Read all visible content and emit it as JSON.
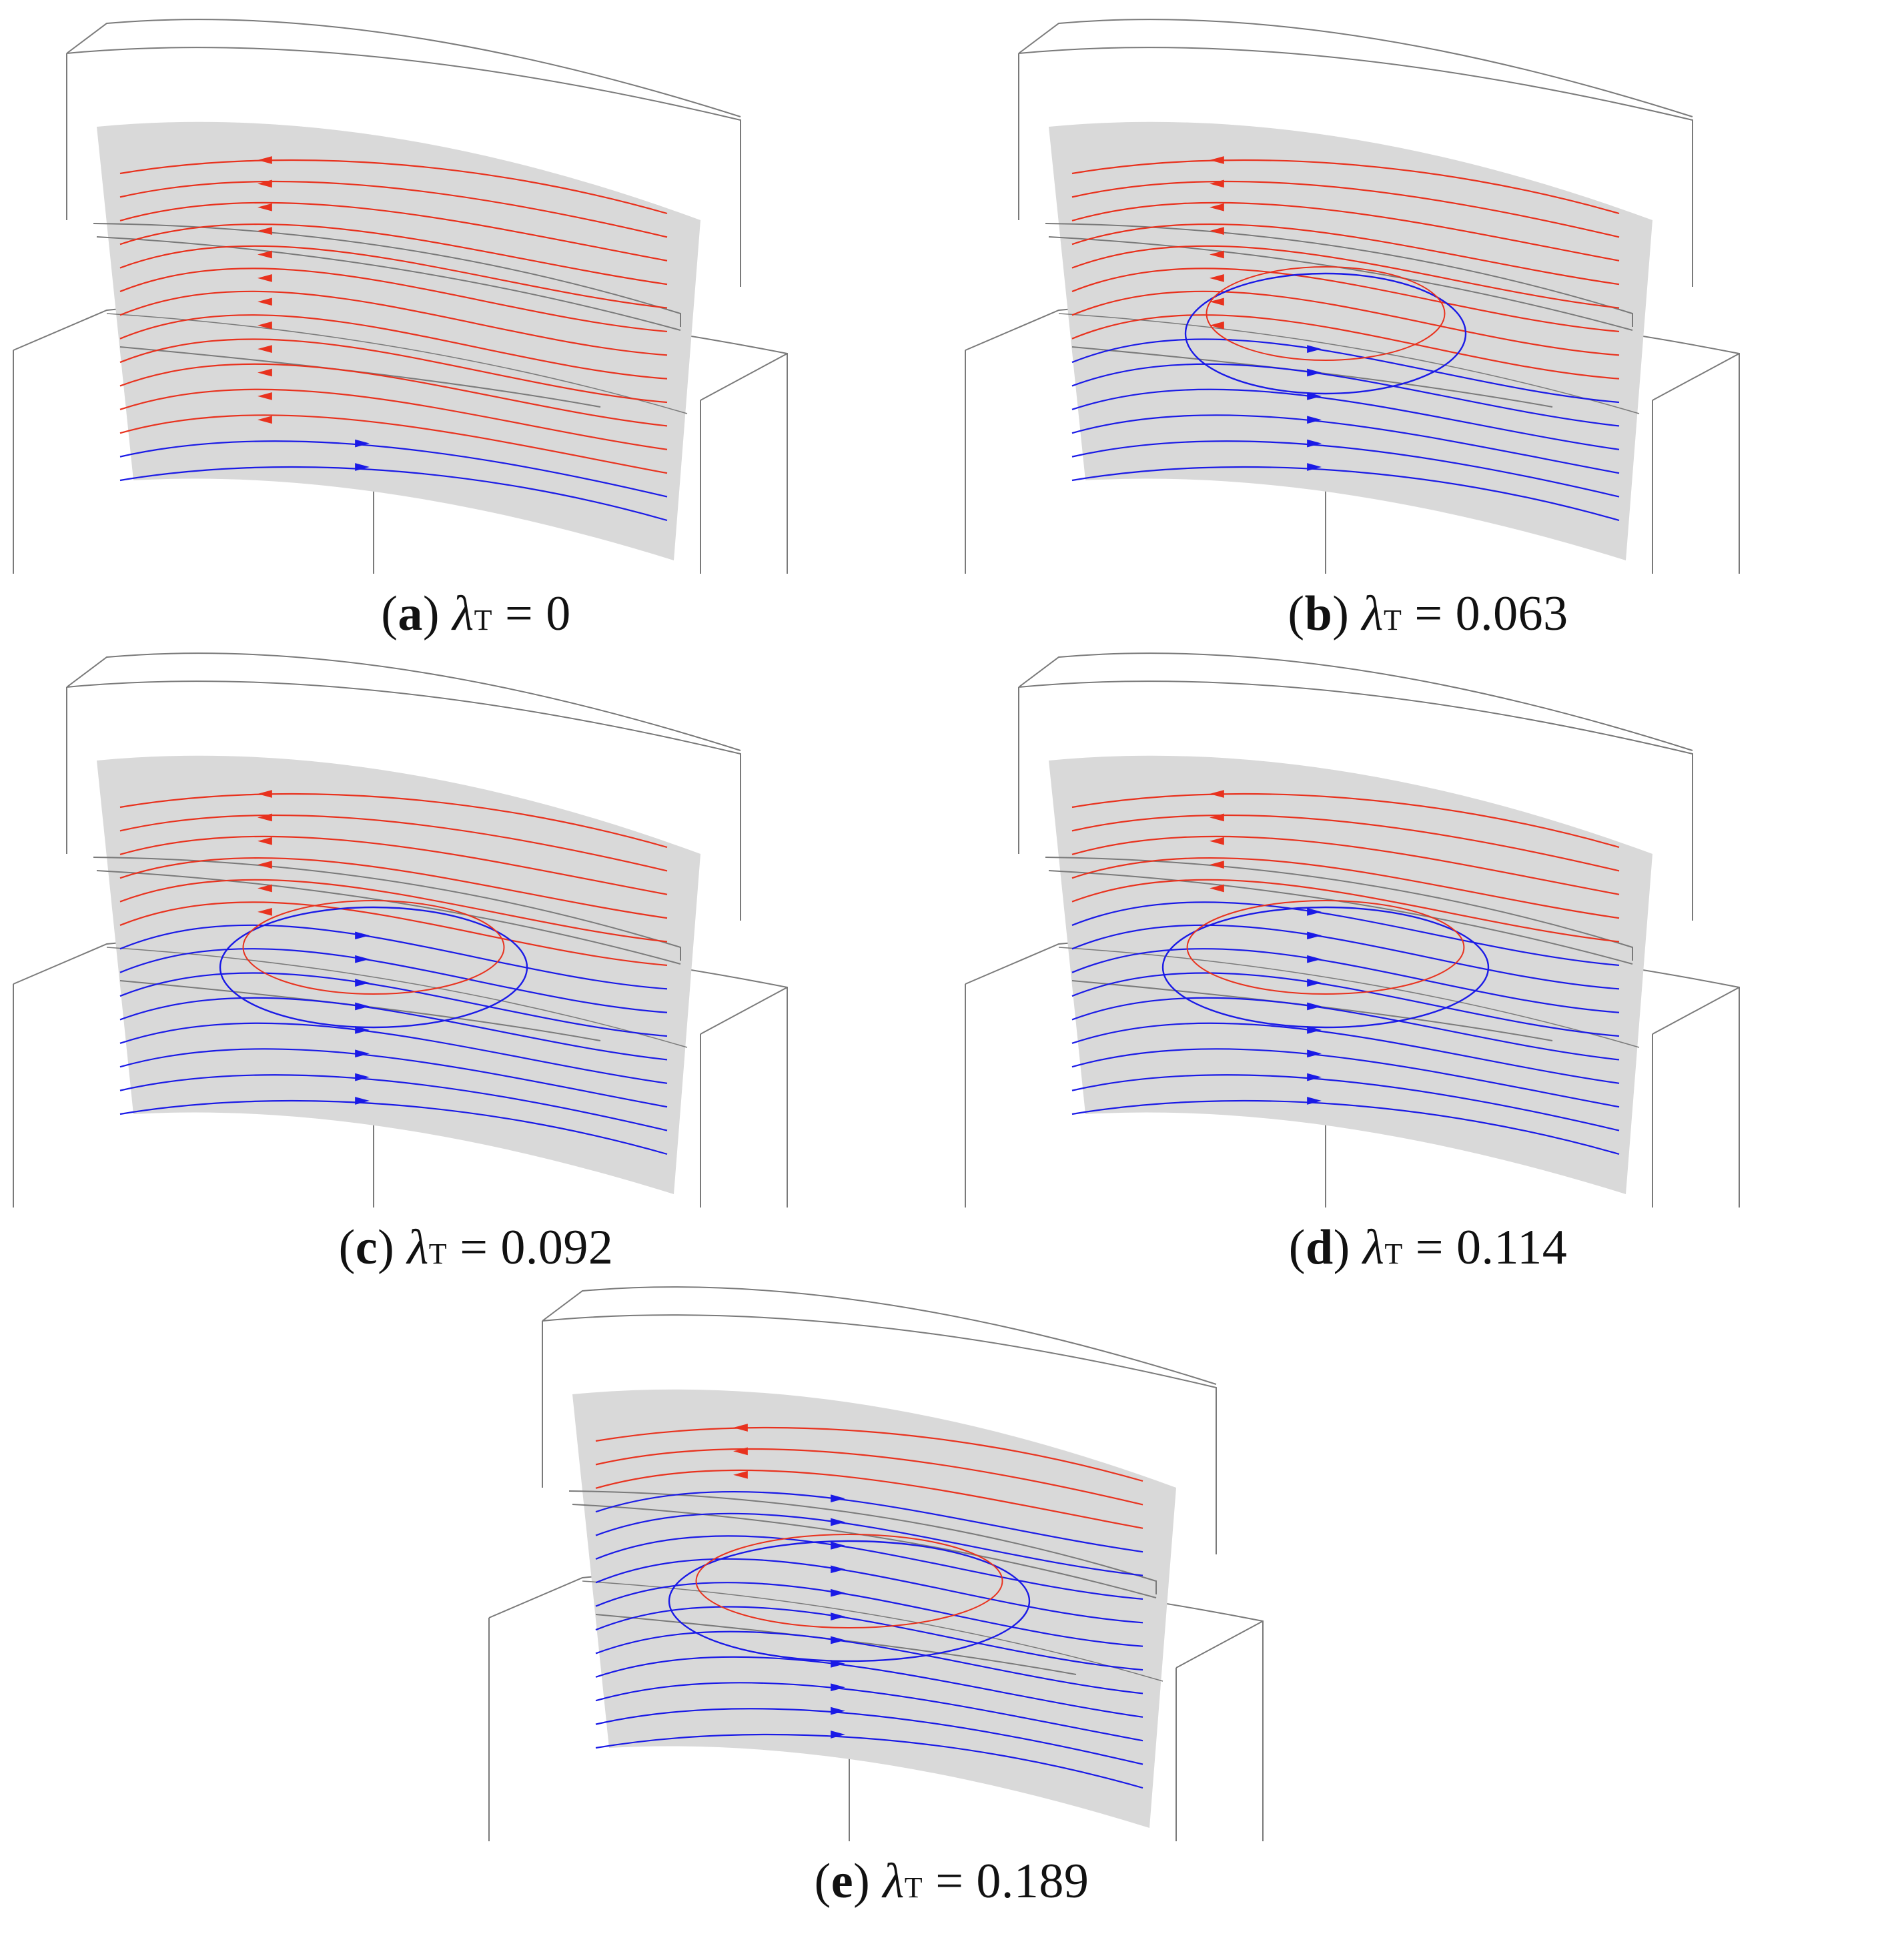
{
  "figure": {
    "panels": [
      {
        "id": "a",
        "letter": "a",
        "symbol": "λ",
        "subscript": "T",
        "equals": "=",
        "value": "0",
        "blue_fraction": 0.12
      },
      {
        "id": "b",
        "letter": "b",
        "symbol": "λ",
        "subscript": "T",
        "equals": "=",
        "value": "0.063",
        "blue_fraction": 0.45
      },
      {
        "id": "c",
        "letter": "c",
        "symbol": "λ",
        "subscript": "T",
        "equals": "=",
        "value": "0.092",
        "blue_fraction": 0.55
      },
      {
        "id": "d",
        "letter": "d",
        "symbol": "λ",
        "subscript": "T",
        "equals": "=",
        "value": "0.114",
        "blue_fraction": 0.62
      },
      {
        "id": "e",
        "letter": "e",
        "symbol": "λ",
        "subscript": "T",
        "equals": "=",
        "value": "0.189",
        "blue_fraction": 0.75
      }
    ],
    "colors": {
      "upstream_streamline": "#e8321e",
      "downstream_streamline": "#1a1ae6",
      "section_plane": "#d9d9d9",
      "outline": "#7a7a7a",
      "caption_text": "#111111"
    }
  }
}
